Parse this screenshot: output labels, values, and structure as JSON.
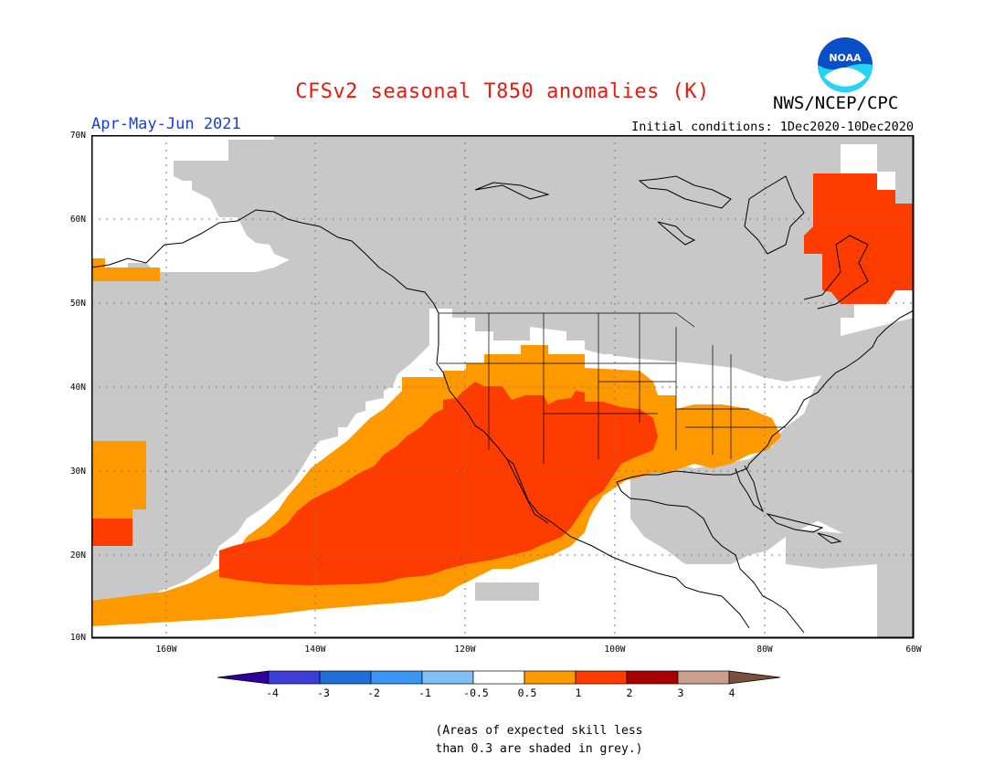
{
  "header": {
    "title": "CFSv2 seasonal T850 anomalies (K)",
    "agency": "NWS/NCEP/CPC",
    "season": "Apr-May-Jun 2021",
    "initial_conditions": "Initial conditions: 1Dec2020-10Dec2020",
    "logo_text": "NOAA"
  },
  "map": {
    "lat_labels": [
      "70N",
      "60N",
      "50N",
      "40N",
      "30N",
      "20N",
      "10N"
    ],
    "lon_labels": [
      "160W",
      "140W",
      "120W",
      "100W",
      "80W",
      "60W"
    ],
    "colors": {
      "land_skill_grey": "#c8c8c8",
      "ocean_white": "#ffffff",
      "anom_0_5_to_1": "#ff9900",
      "anom_1_to_2": "#ff3c00",
      "coast": "#000000"
    }
  },
  "colorbar": {
    "labels": [
      "-4",
      "-3",
      "-2",
      "-1",
      "-0.5",
      "0.5",
      "1",
      "2",
      "3",
      "4"
    ],
    "colors": [
      "#2c0099",
      "#3d3dd8",
      "#1f6fd8",
      "#3b96f5",
      "#7fbff5",
      "#ffffff",
      "#ff9900",
      "#ff3c00",
      "#a80000",
      "#cc9f8c",
      "#7a4f3f"
    ]
  },
  "note": {
    "line1": "(Areas of expected skill less",
    "line2": "than 0.3 are shaded in grey.)"
  }
}
